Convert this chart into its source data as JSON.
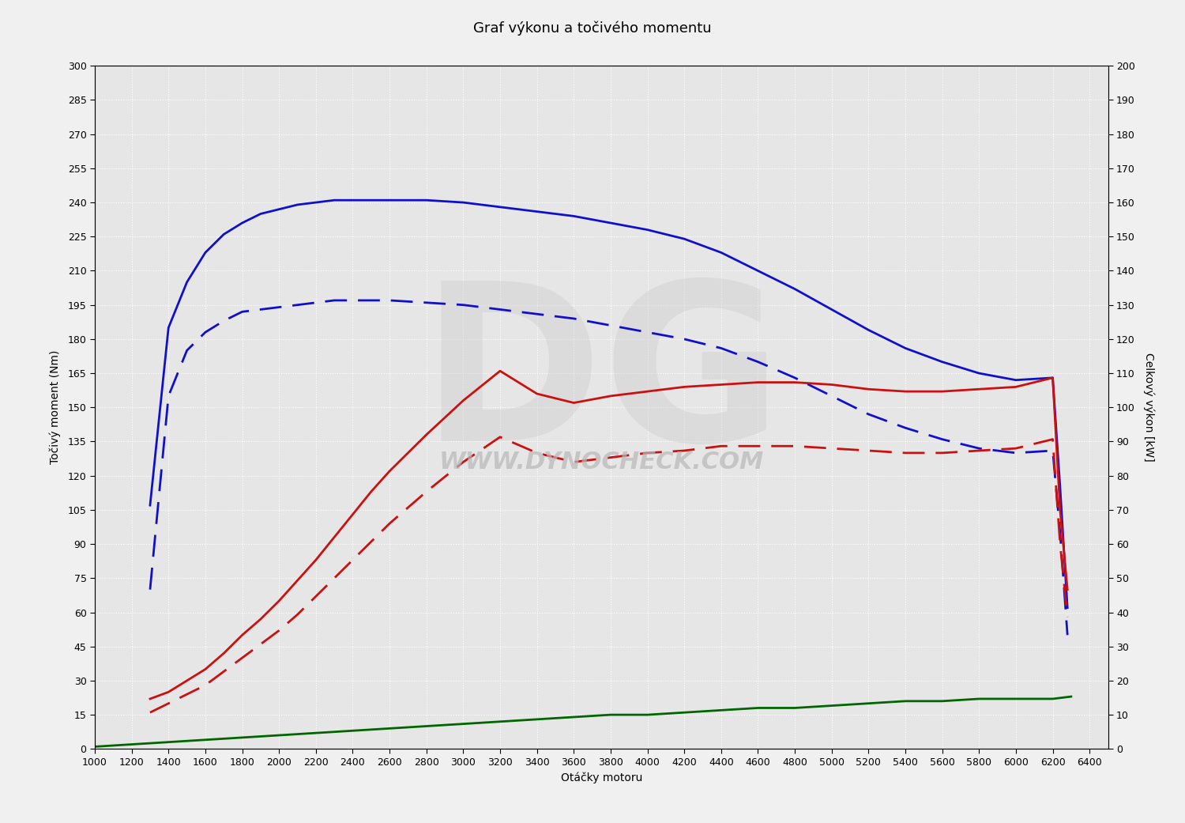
{
  "title": "Graf výkonu a točivého momentu",
  "xlabel": "Otáčky motoru",
  "ylabel_left": "Točivý moment (Nm)",
  "ylabel_right": "Celkový výkon [kW]",
  "xlim": [
    1000,
    6500
  ],
  "ylim_left": [
    0,
    300
  ],
  "ylim_right": [
    0,
    200
  ],
  "xticks": [
    1000,
    1200,
    1400,
    1600,
    1800,
    2000,
    2200,
    2400,
    2600,
    2800,
    3000,
    3200,
    3400,
    3600,
    3800,
    4000,
    4200,
    4400,
    4600,
    4800,
    5000,
    5200,
    5400,
    5600,
    5800,
    6000,
    6200,
    6400
  ],
  "yticks_left": [
    0,
    15,
    30,
    45,
    60,
    75,
    90,
    105,
    120,
    135,
    150,
    165,
    180,
    195,
    210,
    225,
    240,
    255,
    270,
    285,
    300
  ],
  "yticks_right": [
    0,
    10,
    20,
    30,
    40,
    50,
    60,
    70,
    80,
    90,
    100,
    110,
    120,
    130,
    140,
    150,
    160,
    170,
    180,
    190,
    200
  ],
  "background_color": "#f0f0f0",
  "plot_bg_color": "#e6e6e6",
  "grid_color": "#ffffff",
  "blue_solid_rpm": [
    1300,
    1400,
    1500,
    1600,
    1700,
    1800,
    1900,
    2000,
    2100,
    2200,
    2300,
    2400,
    2500,
    2600,
    2800,
    3000,
    3200,
    3400,
    3600,
    3800,
    4000,
    4200,
    4400,
    4600,
    4800,
    5000,
    5200,
    5400,
    5600,
    5800,
    6000,
    6200,
    6240,
    6280
  ],
  "blue_solid_nm": [
    107,
    185,
    205,
    218,
    226,
    231,
    235,
    237,
    239,
    240,
    241,
    241,
    241,
    241,
    241,
    240,
    238,
    236,
    234,
    231,
    228,
    224,
    218,
    210,
    202,
    193,
    184,
    176,
    170,
    165,
    162,
    163,
    115,
    62
  ],
  "blue_dashed_rpm": [
    1300,
    1400,
    1500,
    1600,
    1700,
    1800,
    1900,
    2000,
    2100,
    2200,
    2300,
    2400,
    2500,
    2600,
    2800,
    3000,
    3200,
    3400,
    3600,
    3800,
    4000,
    4200,
    4400,
    4600,
    4800,
    5000,
    5200,
    5400,
    5600,
    5800,
    6000,
    6200,
    6240,
    6280
  ],
  "blue_dashed_nm": [
    70,
    155,
    175,
    183,
    188,
    192,
    193,
    194,
    195,
    196,
    197,
    197,
    197,
    197,
    196,
    195,
    193,
    191,
    189,
    186,
    183,
    180,
    176,
    170,
    163,
    155,
    147,
    141,
    136,
    132,
    130,
    131,
    95,
    50
  ],
  "red_solid_rpm": [
    1300,
    1400,
    1500,
    1600,
    1700,
    1800,
    1900,
    2000,
    2100,
    2200,
    2300,
    2400,
    2500,
    2600,
    2800,
    3000,
    3200,
    3400,
    3600,
    3800,
    4000,
    4200,
    4400,
    4600,
    4800,
    5000,
    5200,
    5400,
    5600,
    5800,
    6000,
    6200,
    6240,
    6280
  ],
  "red_solid_nm": [
    22,
    25,
    30,
    35,
    42,
    50,
    57,
    65,
    74,
    83,
    93,
    103,
    113,
    122,
    138,
    153,
    166,
    156,
    152,
    155,
    157,
    159,
    160,
    161,
    161,
    160,
    158,
    157,
    157,
    158,
    159,
    163,
    105,
    70
  ],
  "red_dashed_rpm": [
    1300,
    1400,
    1500,
    1600,
    1700,
    1800,
    1900,
    2000,
    2100,
    2200,
    2300,
    2400,
    2500,
    2600,
    2800,
    3000,
    3200,
    3400,
    3600,
    3800,
    4000,
    4200,
    4400,
    4600,
    4800,
    5000,
    5200,
    5400,
    5600,
    5800,
    6000,
    6200,
    6240,
    6280
  ],
  "red_dashed_nm": [
    16,
    20,
    24,
    28,
    34,
    40,
    46,
    52,
    59,
    67,
    75,
    83,
    91,
    99,
    113,
    126,
    137,
    130,
    126,
    128,
    130,
    131,
    133,
    133,
    133,
    132,
    131,
    130,
    130,
    131,
    132,
    136,
    90,
    58
  ],
  "green_rpm": [
    1000,
    1200,
    1400,
    1600,
    1800,
    2000,
    2200,
    2400,
    2600,
    2800,
    3000,
    3200,
    3400,
    3600,
    3800,
    4000,
    4200,
    4400,
    4600,
    4800,
    5000,
    5200,
    5400,
    5600,
    5800,
    6000,
    6200,
    6300
  ],
  "green_nm": [
    1,
    2,
    3,
    4,
    5,
    6,
    7,
    8,
    9,
    10,
    11,
    12,
    13,
    14,
    15,
    15,
    16,
    17,
    18,
    18,
    19,
    20,
    21,
    21,
    22,
    22,
    22,
    23
  ],
  "watermark_text": "WWW.DYNOCHECK.COM",
  "watermark_color": "#b8b8b8",
  "dg_watermark_color": "#c8c8c8",
  "blue_color": "#1010cc",
  "red_color": "#cc1010",
  "green_color": "#006600"
}
